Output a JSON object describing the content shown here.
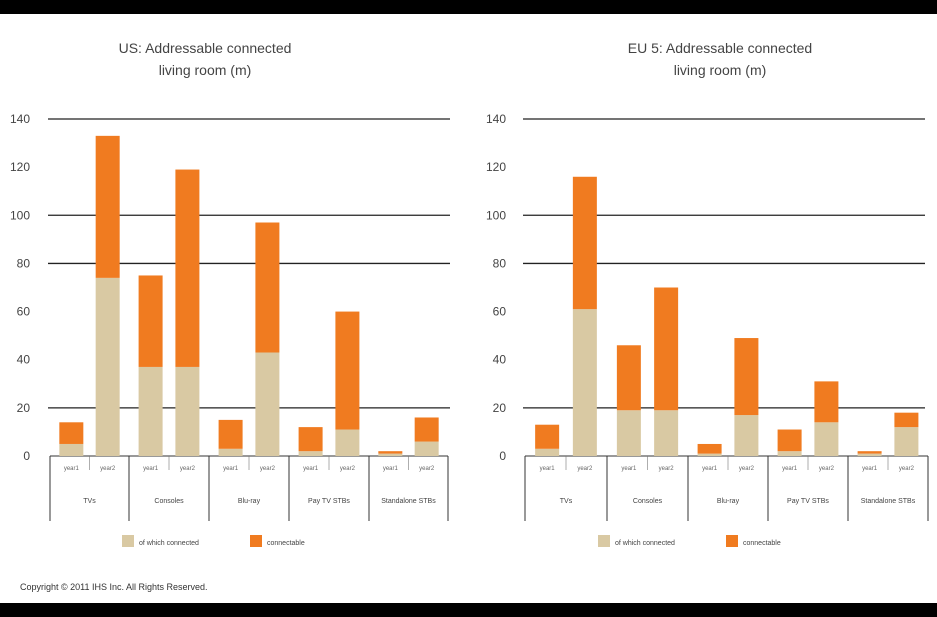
{
  "copyright": "Copyright © 2011 IHS Inc. All Rights Reserved.",
  "colors": {
    "connected": "#d9c9a3",
    "connectable": "#f07b20",
    "axis": "#333333",
    "gridline": "#222222"
  },
  "chart_data": [
    {
      "type": "bar",
      "stacked": true,
      "title_line1": "US: Addressable connected",
      "title_line2": "living room (m)",
      "ylim": [
        0,
        140
      ],
      "yticks": [
        0,
        20,
        40,
        60,
        80,
        100,
        120,
        140
      ],
      "groups": [
        "TVs",
        "Consoles",
        "Blu-ray",
        "Pay TV STBs",
        "Standalone STBs"
      ],
      "bar_labels": [
        "year1",
        "year2",
        "year1",
        "year2",
        "year1",
        "year2",
        "year1",
        "year2",
        "year1",
        "year2"
      ],
      "series": [
        {
          "name": "of which connected",
          "values": [
            5,
            74,
            37,
            37,
            3,
            43,
            2,
            11,
            1,
            6
          ]
        },
        {
          "name": "connectable",
          "values": [
            9,
            59,
            38,
            82,
            12,
            54,
            10,
            49,
            1,
            10
          ]
        }
      ],
      "legend": [
        "of which connected",
        "connectable"
      ]
    },
    {
      "type": "bar",
      "stacked": true,
      "title_line1": "EU 5: Addressable connected",
      "title_line2": "living room (m)",
      "ylim": [
        0,
        140
      ],
      "yticks": [
        0,
        20,
        40,
        60,
        80,
        100,
        120,
        140
      ],
      "groups": [
        "TVs",
        "Consoles",
        "Blu-ray",
        "Pay TV STBs",
        "Standalone STBs"
      ],
      "bar_labels": [
        "year1",
        "year2",
        "year1",
        "year2",
        "year1",
        "year2",
        "year1",
        "year2",
        "year1",
        "year2"
      ],
      "series": [
        {
          "name": "of which connected",
          "values": [
            3,
            61,
            19,
            19,
            1,
            17,
            2,
            14,
            1,
            12
          ]
        },
        {
          "name": "connectable",
          "values": [
            10,
            55,
            27,
            51,
            4,
            32,
            9,
            17,
            1,
            6
          ]
        }
      ],
      "legend": [
        "of which connected",
        "connectable"
      ]
    }
  ]
}
